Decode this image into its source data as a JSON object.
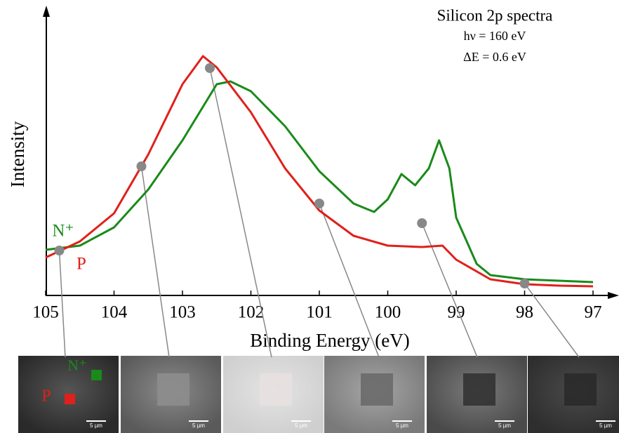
{
  "chart_data": {
    "type": "line",
    "title": "Silicon 2p spectra",
    "subtitle": [
      "hν = 160 eV",
      "ΔE = 0.6 eV"
    ],
    "x_label": "Binding Energy (eV)",
    "y_label": "Intensity",
    "xlim": [
      105,
      97
    ],
    "xticks": [
      105,
      104,
      103,
      102,
      101,
      100,
      99,
      98,
      97
    ],
    "ylim": [
      0,
      100
    ],
    "series": [
      {
        "name": "N⁺",
        "color": "#1a8a1a",
        "x": [
          105,
          104.5,
          104,
          103.5,
          103,
          102.5,
          102.3,
          102,
          101.5,
          101,
          100.5,
          100.2,
          100,
          99.8,
          99.6,
          99.4,
          99.25,
          99.1,
          99,
          98.7,
          98.5,
          98,
          97.5,
          97
        ],
        "values": [
          16,
          17.5,
          24,
          37.5,
          55,
          75,
          76,
          72.5,
          60,
          44,
          32.5,
          29.5,
          34,
          43,
          39,
          45,
          55,
          45,
          27.5,
          11,
          7,
          5.5,
          5,
          4.5
        ]
      },
      {
        "name": "P",
        "color": "#e0201a",
        "x": [
          105,
          104.5,
          104,
          103.5,
          103,
          102.7,
          102.5,
          102,
          101.5,
          101,
          100.5,
          100,
          99.5,
          99.2,
          99,
          98.5,
          98,
          97.5,
          97
        ],
        "values": [
          13.25,
          19,
          29,
          50,
          75,
          85,
          81,
          65,
          45,
          30,
          21,
          17.5,
          17,
          17.5,
          12.5,
          5.5,
          3.75,
          3.25,
          3
        ]
      }
    ],
    "markers": {
      "x": [
        104.8,
        103.6,
        102.6,
        101,
        99.5,
        98
      ],
      "y": [
        15.75,
        45.75,
        80.75,
        32.5,
        25.5,
        4
      ]
    },
    "images": [
      {
        "scale": "5 µm"
      },
      {
        "scale": "5 µm"
      },
      {
        "scale": "5 µm"
      },
      {
        "scale": "5 µm"
      },
      {
        "scale": "5 µm"
      },
      {
        "scale": "5 µm"
      }
    ]
  }
}
